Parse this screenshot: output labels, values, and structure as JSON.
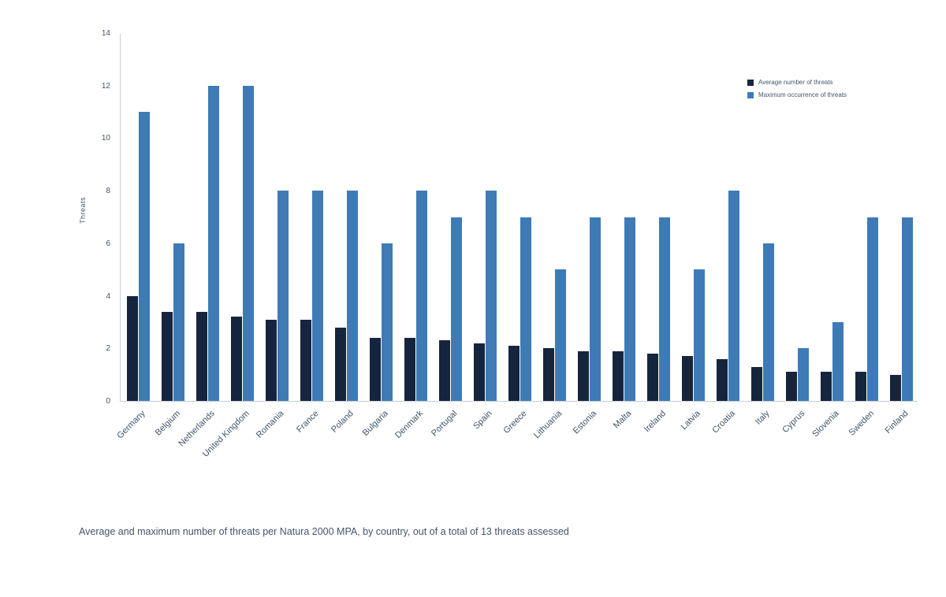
{
  "caption": "Average and maximum number of threats per Natura 2000 MPA, by country, out of a total of 13 threats assessed",
  "chart_data": {
    "type": "bar",
    "title": "",
    "xlabel": "",
    "ylabel": "Threats",
    "ylim": [
      0,
      14
    ],
    "yticks": [
      0,
      2,
      4,
      6,
      8,
      10,
      12,
      14
    ],
    "grid": false,
    "legend_position": "top-right",
    "categories": [
      "Germany",
      "Belgium",
      "Netherlands",
      "United Kingdom",
      "Romania",
      "France",
      "Poland",
      "Bulgaria",
      "Denmark",
      "Portugal",
      "Spain",
      "Greece",
      "Lithuania",
      "Estonia",
      "Malta",
      "Ireland",
      "Latvia",
      "Croatia",
      "Italy",
      "Cyprus",
      "Slovenia",
      "Sweden",
      "Finland"
    ],
    "series": [
      {
        "name": "Average number of threats",
        "color": "#16253e",
        "values": [
          4.0,
          3.4,
          3.4,
          3.2,
          3.1,
          3.1,
          2.8,
          2.4,
          2.4,
          2.3,
          2.2,
          2.1,
          2.0,
          1.9,
          1.9,
          1.8,
          1.7,
          1.6,
          1.3,
          1.1,
          1.1,
          1.1,
          1.0
        ]
      },
      {
        "name": "Maximum occurrence of threats",
        "color": "#3e7bb6",
        "values": [
          11,
          6,
          12,
          12,
          8,
          8,
          8,
          6,
          8,
          7,
          8,
          7,
          5,
          7,
          7,
          7,
          5,
          8,
          6,
          2,
          3,
          7,
          7
        ]
      }
    ]
  }
}
